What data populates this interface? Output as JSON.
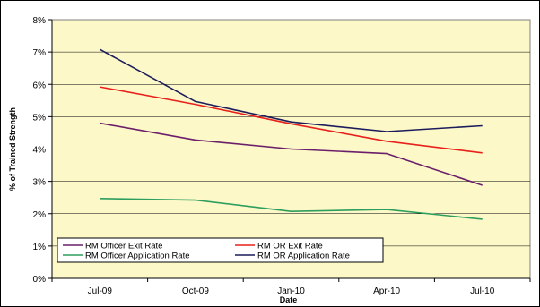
{
  "chart_data": {
    "type": "line",
    "title": "",
    "xlabel": "Date",
    "ylabel": "% of Trained Strength",
    "categories": [
      "Jul-09",
      "Oct-09",
      "Jan-10",
      "Apr-10",
      "Jul-10"
    ],
    "y_ticks": [
      "0%",
      "1%",
      "2%",
      "3%",
      "4%",
      "5%",
      "6%",
      "7%",
      "8%"
    ],
    "ylim": [
      0,
      8
    ],
    "grid": "horizontal",
    "legend_position": "bottom-left",
    "plot_background": "#fcf8c8",
    "series": [
      {
        "name": "RM Officer Exit Rate",
        "color": "#6b1f6b",
        "values": [
          4.8,
          4.28,
          4.0,
          3.86,
          2.88
        ]
      },
      {
        "name": "RM OR Exit Rate",
        "color": "#e8201c",
        "values": [
          5.92,
          5.38,
          4.78,
          4.24,
          3.88
        ]
      },
      {
        "name": "RM Officer Application Rate",
        "color": "#2e9e5e",
        "values": [
          2.47,
          2.42,
          2.07,
          2.13,
          1.83
        ]
      },
      {
        "name": "RM OR Application Rate",
        "color": "#1c1c5c",
        "values": [
          7.08,
          5.47,
          4.84,
          4.54,
          4.72
        ]
      }
    ]
  }
}
